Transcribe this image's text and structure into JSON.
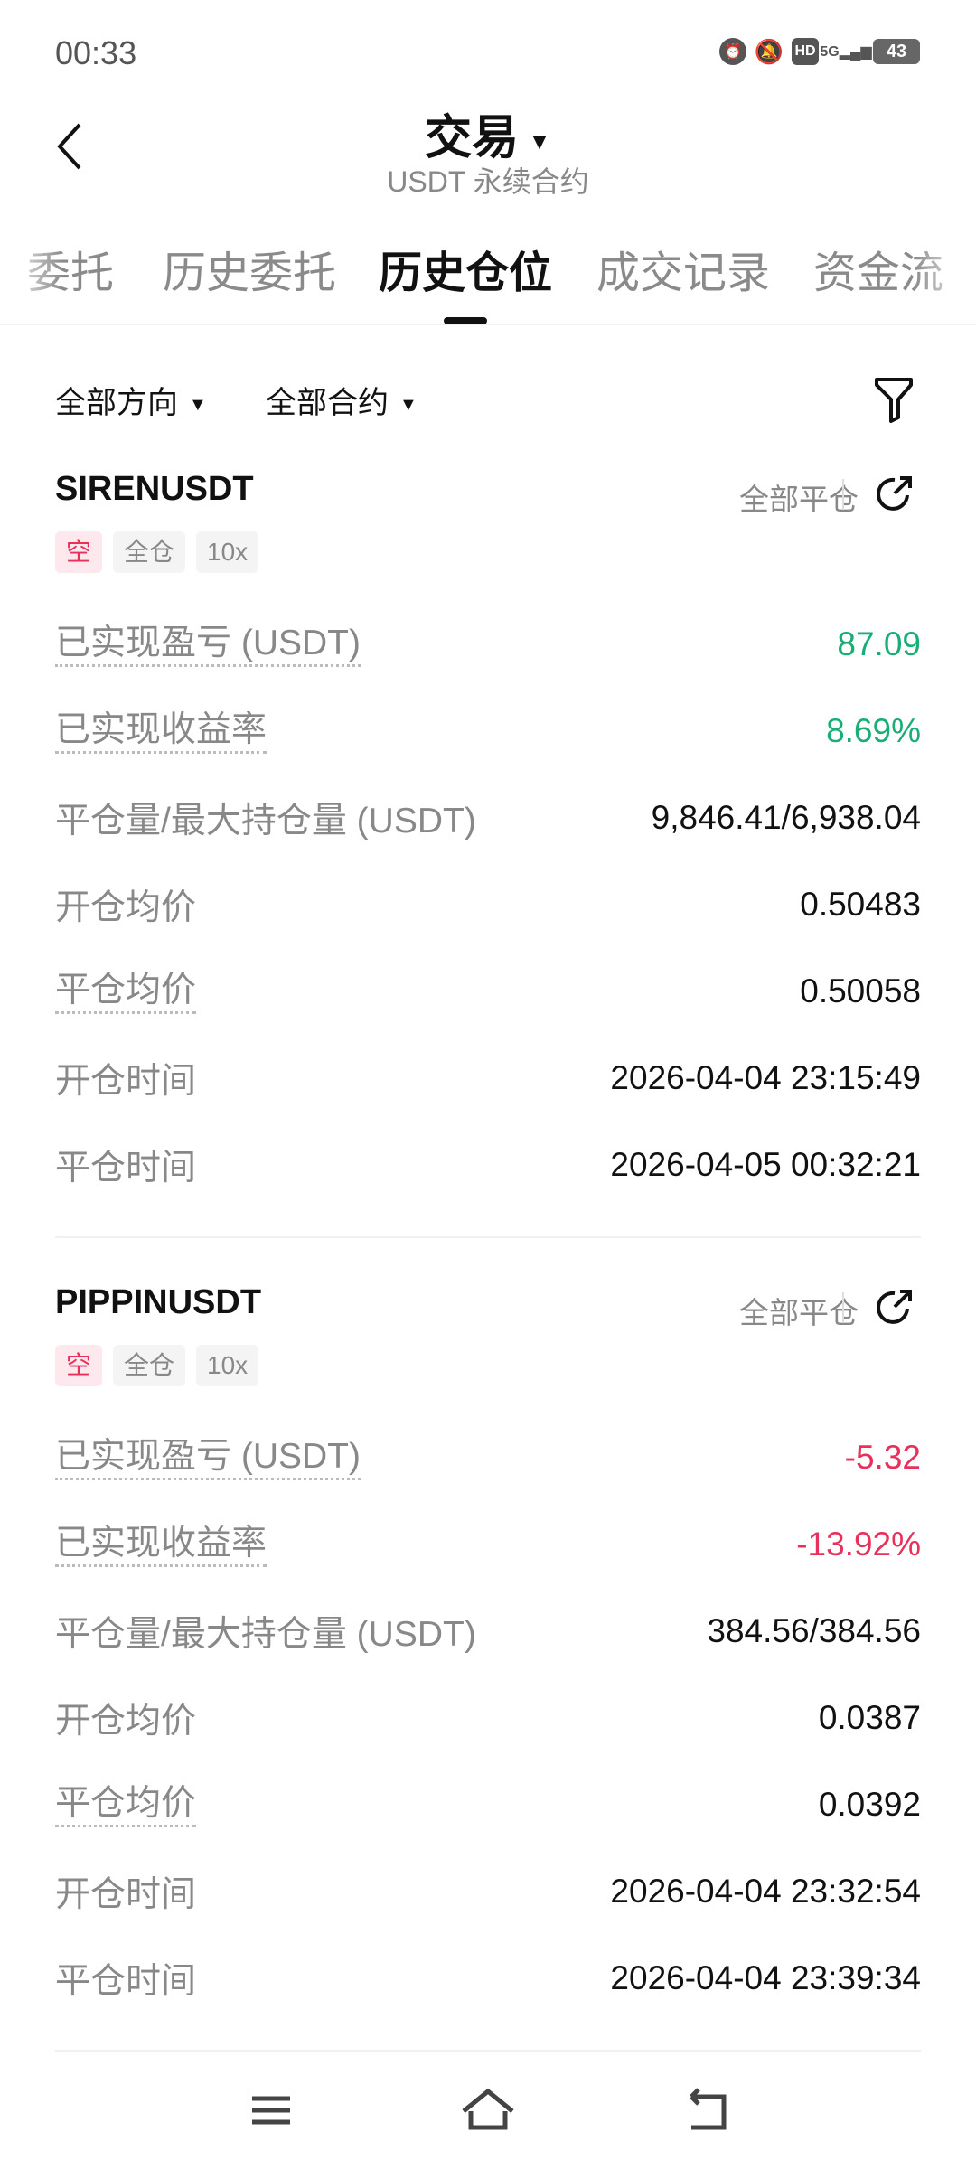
{
  "status_bar": {
    "time": "00:33",
    "battery": "43",
    "icons": [
      "alarm-icon",
      "mute-icon",
      "hd-icon",
      "5g-signal-icon",
      "battery-icon"
    ]
  },
  "header": {
    "title": "交易",
    "subtitle": "USDT 永续合约"
  },
  "tabs": [
    {
      "label": "委托"
    },
    {
      "label": "历史委托"
    },
    {
      "label": "历史仓位",
      "active": true
    },
    {
      "label": "成交记录"
    },
    {
      "label": "资金流"
    }
  ],
  "filters": {
    "direction": "全部方向",
    "contract": "全部合约"
  },
  "colors": {
    "profit": "#1aad76",
    "loss": "#e8305a"
  },
  "positions": [
    {
      "symbol": "SIRENUSDT",
      "close_all": "全部平仓",
      "tags": [
        "空",
        "全仓",
        "10x"
      ],
      "rows": [
        {
          "label": "已实现盈亏 (USDT)",
          "value": "87.09"
        },
        {
          "label": "已实现收益率",
          "value": "8.69%"
        },
        {
          "label": "平仓量/最大持仓量 (USDT)",
          "value": "9,846.41/6,938.04"
        },
        {
          "label": "开仓均价",
          "value": "0.50483"
        },
        {
          "label": "平仓均价",
          "value": "0.50058"
        },
        {
          "label": "开仓时间",
          "value": "2026-04-04 23:15:49"
        },
        {
          "label": "平仓时间",
          "value": "2026-04-05 00:32:21"
        }
      ]
    },
    {
      "symbol": "PIPPINUSDT",
      "close_all": "全部平仓",
      "tags": [
        "空",
        "全仓",
        "10x"
      ],
      "rows": [
        {
          "label": "已实现盈亏 (USDT)",
          "value": "-5.32"
        },
        {
          "label": "已实现收益率",
          "value": "-13.92%"
        },
        {
          "label": "平仓量/最大持仓量 (USDT)",
          "value": "384.56/384.56"
        },
        {
          "label": "开仓均价",
          "value": "0.0387"
        },
        {
          "label": "平仓均价",
          "value": "0.0392"
        },
        {
          "label": "开仓时间",
          "value": "2026-04-04 23:32:54"
        },
        {
          "label": "平仓时间",
          "value": "2026-04-04 23:39:34"
        }
      ]
    }
  ]
}
